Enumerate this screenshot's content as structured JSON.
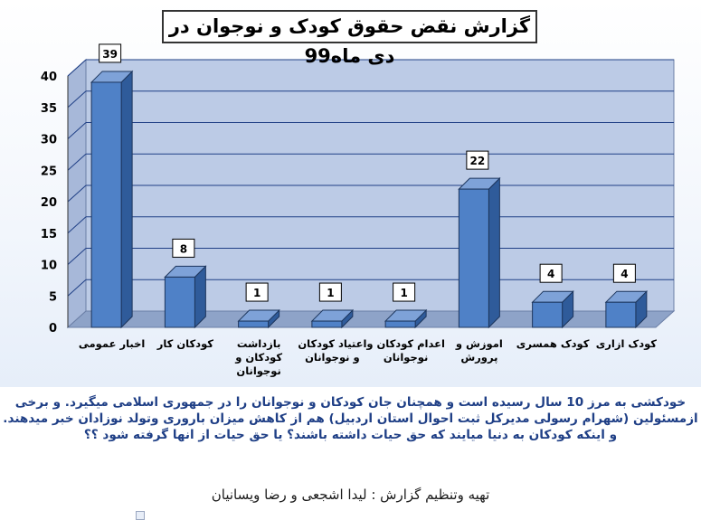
{
  "chart_data": {
    "type": "bar",
    "title": "گزارش نقض حقوق کودک و نوجوان در دی ماه99",
    "categories": [
      [
        "اخبار عمومی"
      ],
      [
        "کودکان کار"
      ],
      [
        "بازداشت",
        "کودکان و",
        "نوجوانان"
      ],
      [
        "اعتیاد کودکان",
        "و نوجوانان"
      ],
      [
        "اعدام کودکان و",
        "نوجوانان"
      ],
      [
        "اموزش و",
        "پرورش"
      ],
      [
        "کودک همسری"
      ],
      [
        "کودک ازاری"
      ]
    ],
    "values": [
      39,
      8,
      1,
      1,
      1,
      22,
      4,
      4
    ],
    "ylim": [
      0,
      40
    ],
    "yticks": [
      0,
      5,
      10,
      15,
      20,
      25,
      30,
      35,
      40
    ],
    "grid": true,
    "bar_color": "#4f81c7",
    "xlabel": "",
    "ylabel": ""
  },
  "caption": "خودکشی به مرز 10 سال رسیده است و همچنان جان کودکان و نوجوانان را در جمهوری اسلامی میگیرد. و برخی ازمسئولین (شهرام رسولی مدیرکل ثبت احوال استان اردبیل) هم از کاهش میزان باروری وتولد نوزادان خبر میدهند. و اینکه کودکان به دنیا میایند که حق حیات داشته باشند؟ یا حق حیات از انها گرفته شود ؟؟",
  "credits": "تهیه وتنظیم گزارش : لیدا اشجعی و رضا ویسانیان"
}
